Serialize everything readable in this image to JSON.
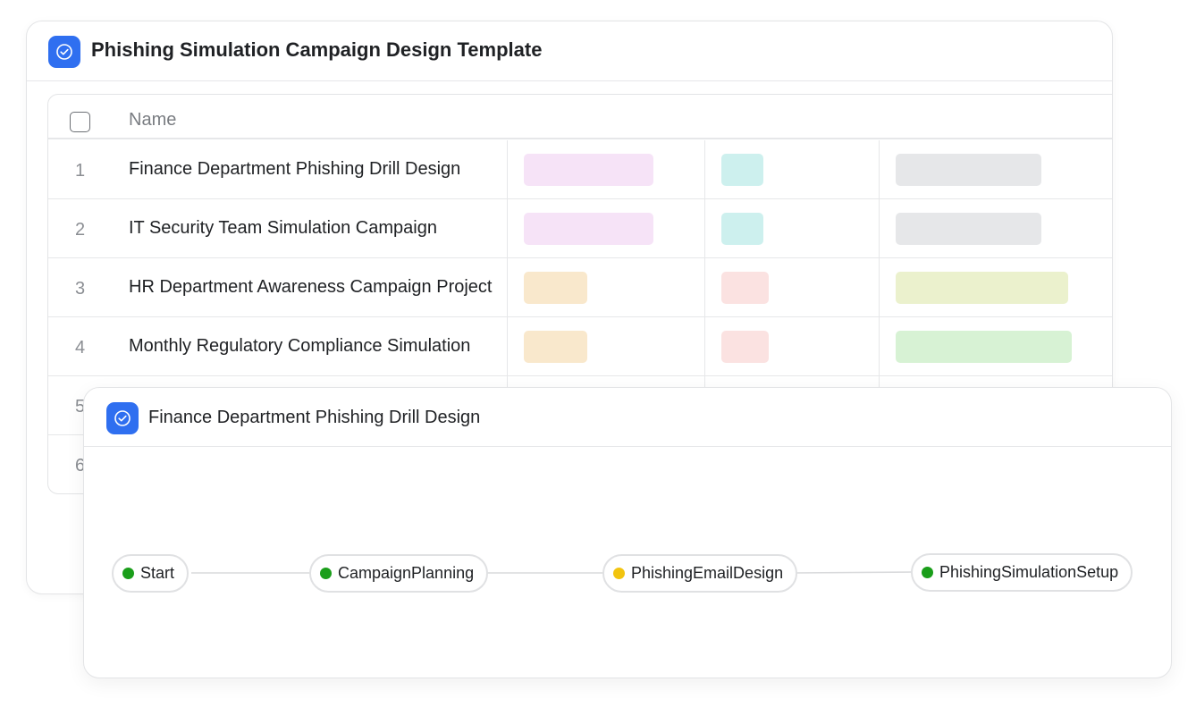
{
  "template": {
    "title": "Phishing Simulation Campaign Design Template",
    "icon": "check-circle-icon",
    "accent": "#2f6ff0"
  },
  "table": {
    "header_name": "Name",
    "rows": [
      {
        "num": "1",
        "name": "Finance Department Phishing Drill Design",
        "tags": [
          "#f6e3f7",
          "#cdf0ee",
          "#e6e7e9"
        ]
      },
      {
        "num": "2",
        "name": "IT Security Team Simulation Campaign",
        "tags": [
          "#f6e3f7",
          "#cdf0ee",
          "#e6e7e9"
        ]
      },
      {
        "num": "3",
        "name": "HR Department Awareness Campaign Project",
        "tags": [
          "#f9e8cc",
          "#fbe2e1",
          "#ebf1cd"
        ]
      },
      {
        "num": "4",
        "name": "Monthly Regulatory Compliance Simulation",
        "tags": [
          "#f9e8cc",
          "#fbe2e1",
          "#d7f2d4"
        ]
      },
      {
        "num": "5",
        "name": ""
      },
      {
        "num": "6",
        "name": ""
      }
    ]
  },
  "detail": {
    "title": "Finance Department Phishing Drill Design",
    "icon": "check-circle-icon",
    "flow": {
      "nodes": [
        {
          "label": "Start",
          "status_color": "#1a9e1a"
        },
        {
          "label": "CampaignPlanning",
          "status_color": "#1a9e1a"
        },
        {
          "label": "PhishingEmailDesign",
          "status_color": "#f2c40f"
        },
        {
          "label": "PhishingSimulationSetup",
          "status_color": "#1a9e1a"
        }
      ]
    }
  }
}
